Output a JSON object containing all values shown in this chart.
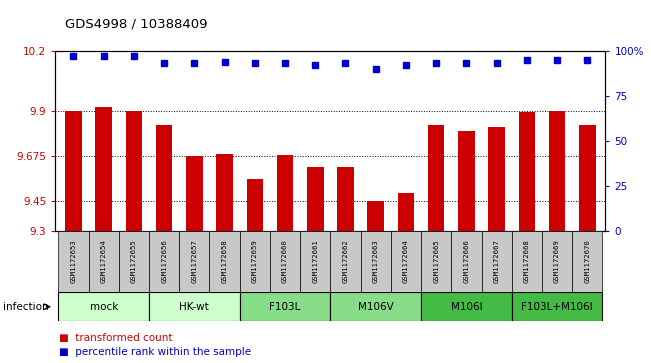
{
  "title": "GDS4998 / 10388409",
  "samples": [
    "GSM1172653",
    "GSM1172654",
    "GSM1172655",
    "GSM1172656",
    "GSM1172657",
    "GSM1172658",
    "GSM1172659",
    "GSM1172660",
    "GSM1172661",
    "GSM1172662",
    "GSM1172663",
    "GSM1172664",
    "GSM1172665",
    "GSM1172666",
    "GSM1172667",
    "GSM1172668",
    "GSM1172669",
    "GSM1172670"
  ],
  "bar_values": [
    9.9,
    9.92,
    9.9,
    9.83,
    9.675,
    9.685,
    9.56,
    9.68,
    9.62,
    9.62,
    9.45,
    9.49,
    9.83,
    9.8,
    9.82,
    9.895,
    9.9,
    9.83
  ],
  "dot_values": [
    97,
    97,
    97,
    93,
    93,
    94,
    93,
    93,
    92,
    93,
    90,
    92,
    93,
    93,
    93,
    95,
    95,
    95
  ],
  "bar_color": "#cc0000",
  "dot_color": "#0000cc",
  "ylim_left": [
    9.3,
    10.2
  ],
  "ylim_right": [
    0,
    100
  ],
  "yticks_left": [
    9.3,
    9.45,
    9.675,
    9.9,
    10.2
  ],
  "yticks_right": [
    0,
    25,
    50,
    75,
    100
  ],
  "ytick_labels_left": [
    "9.3",
    "9.45",
    "9.675",
    "9.9",
    "10.2"
  ],
  "ytick_labels_right": [
    "0",
    "25",
    "50",
    "75",
    "100%"
  ],
  "grid_values": [
    9.45,
    9.675,
    9.9
  ],
  "groups": [
    {
      "label": "mock",
      "start": 0,
      "end": 2,
      "color": "#ccffcc"
    },
    {
      "label": "HK-wt",
      "start": 3,
      "end": 5,
      "color": "#ccffcc"
    },
    {
      "label": "F103L",
      "start": 6,
      "end": 8,
      "color": "#88dd88"
    },
    {
      "label": "M106V",
      "start": 9,
      "end": 11,
      "color": "#88dd88"
    },
    {
      "label": "M106I",
      "start": 12,
      "end": 14,
      "color": "#44bb44"
    },
    {
      "label": "F103L+M106I",
      "start": 15,
      "end": 17,
      "color": "#44bb44"
    }
  ],
  "infection_label": "infection",
  "legend_items": [
    {
      "label": "transformed count",
      "color": "#cc0000"
    },
    {
      "label": "percentile rank within the sample",
      "color": "#0000cc"
    }
  ],
  "sample_box_color": "#c8c8c8",
  "bar_width": 0.55
}
